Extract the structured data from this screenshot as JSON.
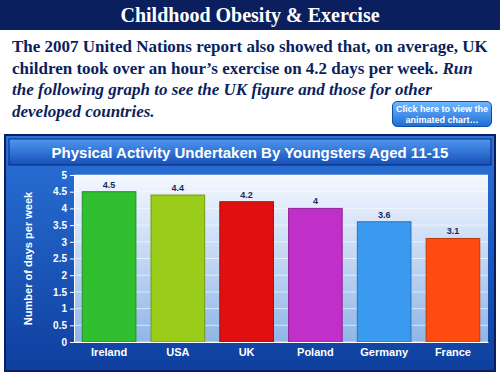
{
  "page": {
    "header": "Childhood Obesity & Exercise",
    "text": "The 2007 United Nations report also showed that, on average, UK children took over an hour’s exercise on 4.2 days per week.",
    "text_italic": "Run the following graph to see the UK figure and those for other developed countries.",
    "button": "Click here to view the animated chart…"
  },
  "chart_data": {
    "type": "bar",
    "title": "Physical Activity Undertaken By Youngsters Aged 11-15",
    "y_label": "Number of days per week",
    "categories": [
      "Ireland",
      "USA",
      "UK",
      "Poland",
      "Germany",
      "France"
    ],
    "values": [
      4.5,
      4.4,
      4.2,
      4,
      3.6,
      3.1
    ],
    "colors": [
      "#2fbf2f",
      "#9acd1a",
      "#e01010",
      "#c030c8",
      "#3a9af0",
      "#ff4a10"
    ],
    "ylim": [
      0,
      5
    ],
    "yticks": [
      0,
      0.5,
      1,
      1.5,
      2,
      2.5,
      3,
      3.5,
      4,
      4.5,
      5
    ],
    "grid": true,
    "data_labels": true
  }
}
